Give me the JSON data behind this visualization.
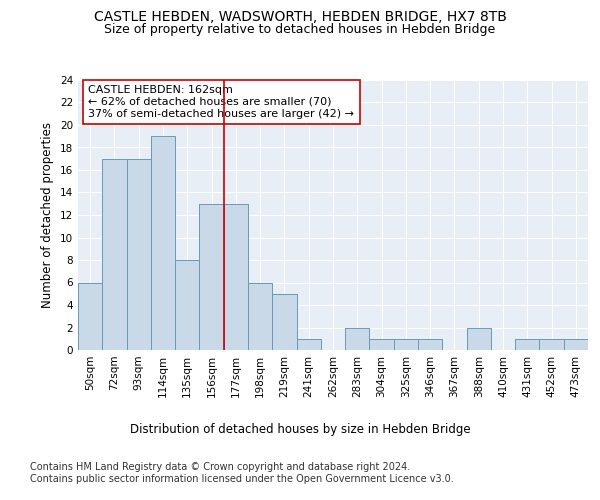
{
  "title": "CASTLE HEBDEN, WADSWORTH, HEBDEN BRIDGE, HX7 8TB",
  "subtitle": "Size of property relative to detached houses in Hebden Bridge",
  "xlabel": "Distribution of detached houses by size in Hebden Bridge",
  "ylabel": "Number of detached properties",
  "categories": [
    "50sqm",
    "72sqm",
    "93sqm",
    "114sqm",
    "135sqm",
    "156sqm",
    "177sqm",
    "198sqm",
    "219sqm",
    "241sqm",
    "262sqm",
    "283sqm",
    "304sqm",
    "325sqm",
    "346sqm",
    "367sqm",
    "388sqm",
    "410sqm",
    "431sqm",
    "452sqm",
    "473sqm"
  ],
  "values": [
    6,
    17,
    17,
    19,
    8,
    13,
    13,
    6,
    5,
    1,
    0,
    2,
    1,
    1,
    1,
    0,
    2,
    0,
    1,
    1,
    1
  ],
  "bar_color": "#c9d9e8",
  "bar_edge_color": "#6699bb",
  "annotation_line1": "CASTLE HEBDEN: 162sqm",
  "annotation_line2": "← 62% of detached houses are smaller (70)",
  "annotation_line3": "37% of semi-detached houses are larger (42) →",
  "vline_x": 5.5,
  "vline_color": "#cc0000",
  "annotation_box_color": "#ffffff",
  "annotation_box_edge_color": "#cc0000",
  "ylim": [
    0,
    24
  ],
  "yticks": [
    0,
    2,
    4,
    6,
    8,
    10,
    12,
    14,
    16,
    18,
    20,
    22,
    24
  ],
  "footer": "Contains HM Land Registry data © Crown copyright and database right 2024.\nContains public sector information licensed under the Open Government Licence v3.0.",
  "plot_bg_color": "#e8eef5",
  "title_fontsize": 10,
  "subtitle_fontsize": 9,
  "axis_label_fontsize": 8.5,
  "tick_fontsize": 7.5,
  "annotation_fontsize": 8,
  "footer_fontsize": 7
}
